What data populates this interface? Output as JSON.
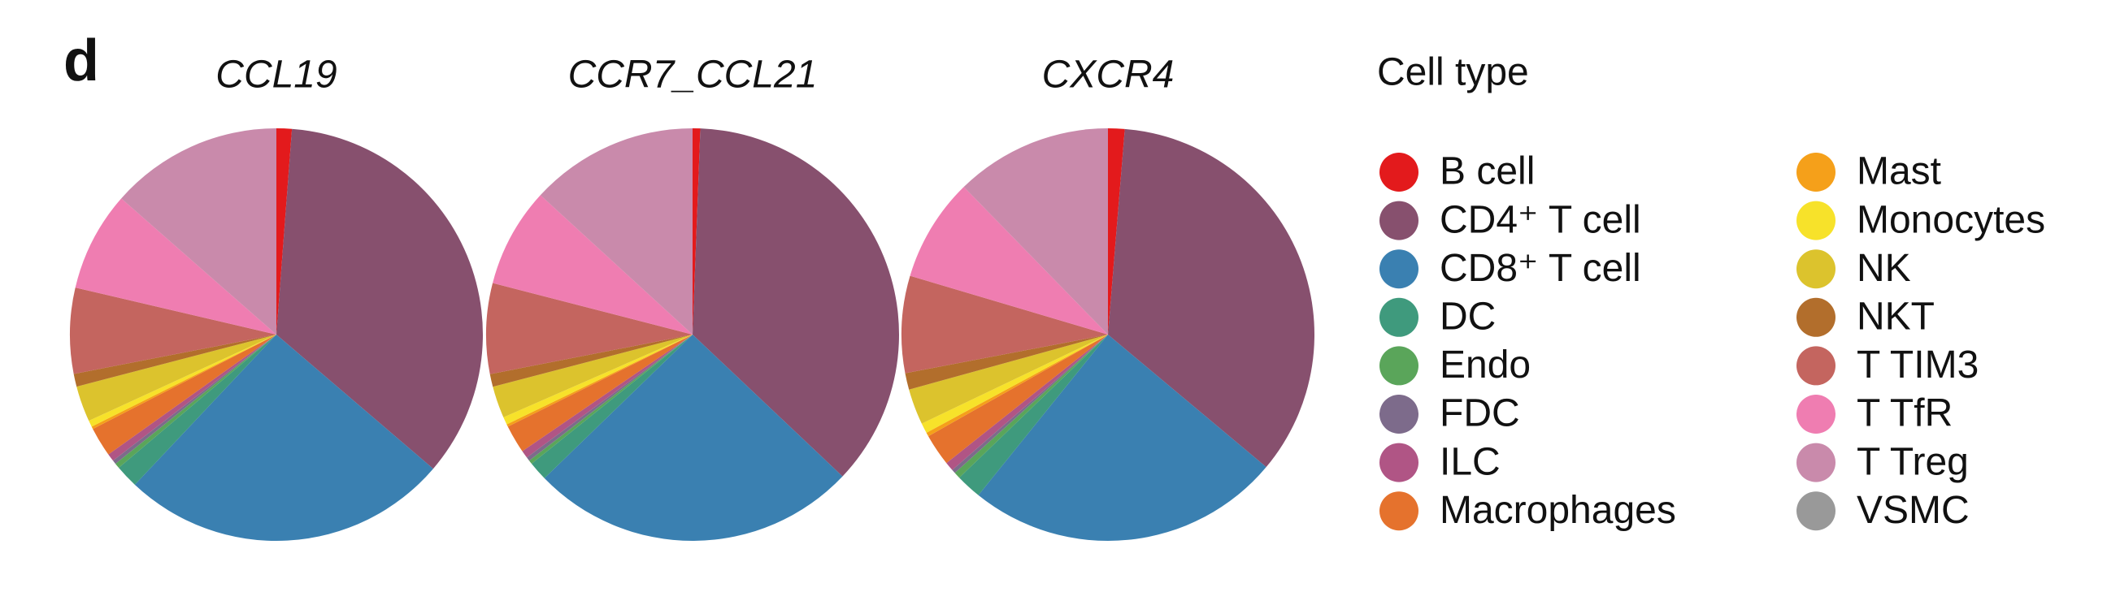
{
  "panel_label": "d",
  "legend": {
    "title": "Cell type"
  },
  "chart_data": [
    {
      "type": "pie",
      "title": "CCL19",
      "categories": [
        "B cell",
        "CD4⁺ T cell",
        "CD8⁺ T cell",
        "DC",
        "Endo",
        "FDC",
        "ILC",
        "Macrophages",
        "Mast",
        "Monocytes",
        "NK",
        "NKT",
        "T TIM3",
        "T TfR",
        "T Treg",
        "VSMC"
      ],
      "colors": [
        "#e31a1c",
        "#87506e",
        "#3a80b1",
        "#3f9a7d",
        "#5aa55a",
        "#7d6b8b",
        "#b05585",
        "#e5722d",
        "#f5a01a",
        "#f7e22a",
        "#dcc32d",
        "#b26e2c",
        "#c4655f",
        "#ef7db1",
        "#c98aab",
        "#999999"
      ],
      "values": [
        1.2,
        35,
        25.7,
        1.8,
        0.4,
        0.3,
        0.6,
        2.3,
        0.2,
        0.5,
        2.8,
        1.0,
        6.7,
        7.8,
        13.5,
        0
      ]
    },
    {
      "type": "pie",
      "title": "CCR7_CCL21",
      "categories": [
        "B cell",
        "CD4⁺ T cell",
        "CD8⁺ T cell",
        "DC",
        "Endo",
        "FDC",
        "ILC",
        "Macrophages",
        "Mast",
        "Monocytes",
        "NK",
        "NKT",
        "T TIM3",
        "T TfR",
        "T Treg",
        "VSMC"
      ],
      "colors": [
        "#e31a1c",
        "#87506e",
        "#3a80b1",
        "#3f9a7d",
        "#5aa55a",
        "#7d6b8b",
        "#b05585",
        "#e5722d",
        "#f5a01a",
        "#f7e22a",
        "#dcc32d",
        "#b26e2c",
        "#c4655f",
        "#ef7db1",
        "#c98aab",
        "#999999"
      ],
      "values": [
        0.6,
        36.5,
        25.7,
        1.5,
        0.3,
        0.3,
        0.6,
        2.2,
        0.2,
        0.6,
        2.5,
        1.0,
        7.1,
        7.8,
        13.2,
        0
      ]
    },
    {
      "type": "pie",
      "title": "CXCR4",
      "categories": [
        "B cell",
        "CD4⁺ T cell",
        "CD8⁺ T cell",
        "DC",
        "Endo",
        "FDC",
        "ILC",
        "Macrophages",
        "Mast",
        "Monocytes",
        "NK",
        "NKT",
        "T TIM3",
        "T TfR",
        "T Treg",
        "VSMC"
      ],
      "colors": [
        "#e31a1c",
        "#87506e",
        "#3a80b1",
        "#3f9a7d",
        "#5aa55a",
        "#7d6b8b",
        "#b05585",
        "#e5722d",
        "#f5a01a",
        "#f7e22a",
        "#dcc32d",
        "#b26e2c",
        "#c4655f",
        "#ef7db1",
        "#c98aab",
        "#999999"
      ],
      "values": [
        1.3,
        34.8,
        24.7,
        2.0,
        0.5,
        0.3,
        0.7,
        2.5,
        0.3,
        0.8,
        2.8,
        1.3,
        7.6,
        8.1,
        12.3,
        0
      ]
    }
  ]
}
